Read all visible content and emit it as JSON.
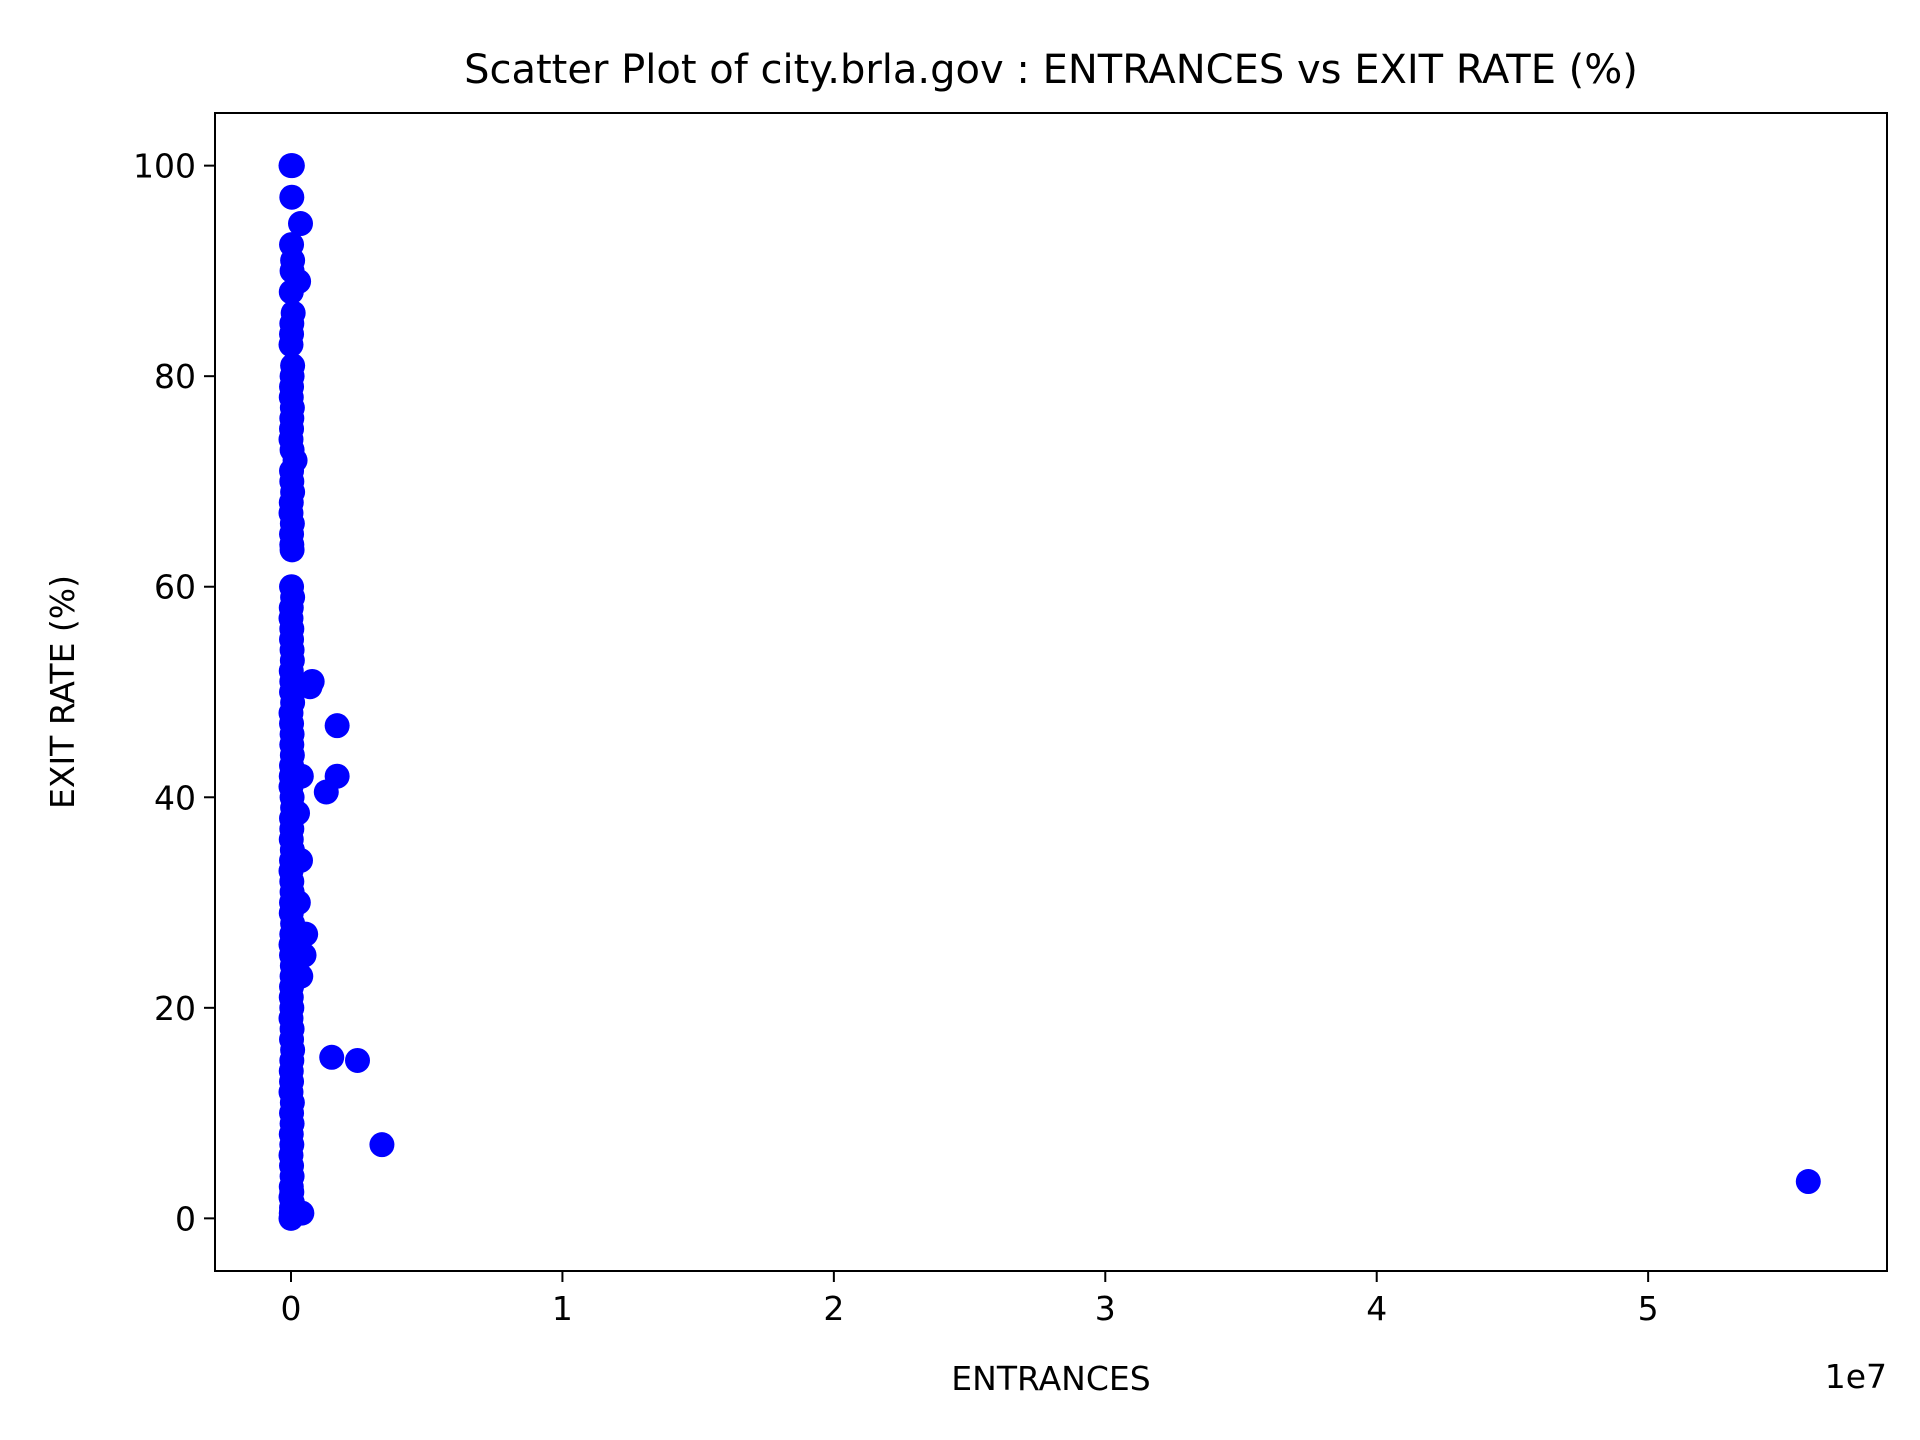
{
  "chart_data": {
    "type": "scatter",
    "title": "Scatter Plot of city.brla.gov : ENTRANCES vs EXIT RATE (%)",
    "xlabel": "ENTRANCES",
    "ylabel": "EXIT RATE (%)",
    "x_offset_label": "1e7",
    "xlim": [
      -2800000,
      58800000
    ],
    "ylim": [
      -5,
      105
    ],
    "x_ticks": [
      0,
      10000000,
      20000000,
      30000000,
      40000000,
      50000000
    ],
    "x_tick_labels": [
      "0",
      "1",
      "2",
      "3",
      "4",
      "5"
    ],
    "y_ticks": [
      0,
      20,
      40,
      60,
      80,
      100
    ],
    "y_tick_labels": [
      "0",
      "20",
      "40",
      "60",
      "80",
      "100"
    ],
    "grid": false,
    "marker_color": "#0000ff",
    "series": [
      {
        "x": [
          0,
          50000,
          30000,
          20000,
          350000,
          280000,
          60000,
          40000,
          10000,
          80000,
          30000,
          20000,
          0,
          60000,
          40000,
          20000,
          10000,
          50000,
          30000,
          20000,
          0,
          40000,
          150000,
          20000,
          30000,
          60000,
          10000,
          0,
          50000,
          20000,
          30000,
          40000,
          20000,
          60000,
          10000,
          0,
          30000,
          20000,
          40000,
          50000,
          10000,
          30000,
          20000,
          60000,
          0,
          20000,
          40000,
          30000,
          50000,
          20000,
          10000,
          0,
          40000,
          60000,
          20000,
          30000,
          10000,
          50000,
          20000,
          0,
          30000,
          40000,
          20000,
          10000,
          60000,
          30000,
          0,
          20000,
          50000,
          40000,
          20000,
          10000,
          30000,
          0,
          40000,
          20000,
          60000,
          30000,
          10000,
          20000,
          0,
          50000,
          20000,
          40000,
          10000,
          30000,
          0,
          20000,
          40000,
          10000,
          30000,
          0,
          50000,
          20000,
          10000,
          0,
          780000,
          700000,
          1700000,
          1700000,
          1300000,
          380000,
          240000,
          350000,
          270000,
          540000,
          480000,
          360000,
          1500000,
          2450000,
          3350000,
          400000,
          55900000
        ],
        "y": [
          100,
          100,
          97,
          92.5,
          94.5,
          89,
          91,
          90,
          88,
          86,
          85,
          84,
          83,
          81,
          80,
          79,
          78,
          77,
          76,
          75,
          74,
          73,
          72,
          71,
          70,
          69,
          68,
          67,
          66,
          65,
          64,
          63.5,
          60,
          59,
          58,
          57,
          56,
          55,
          54,
          53,
          52,
          51,
          50,
          49,
          48,
          47,
          46,
          45,
          44,
          43,
          42,
          41,
          40,
          39,
          38,
          37,
          36,
          35,
          34,
          33,
          32,
          31,
          30,
          29,
          28,
          27,
          26,
          25,
          24,
          23,
          22,
          21,
          20,
          19,
          18,
          17,
          16,
          15,
          14,
          13,
          12,
          11,
          10,
          9,
          8,
          7,
          6,
          5,
          4,
          3,
          2.5,
          2,
          1.5,
          1,
          0.5,
          0,
          51,
          50.5,
          46.8,
          42,
          40.5,
          42,
          38.5,
          34,
          30,
          27,
          25,
          23,
          15.3,
          15,
          7,
          0.5,
          3.5
        ]
      }
    ]
  }
}
